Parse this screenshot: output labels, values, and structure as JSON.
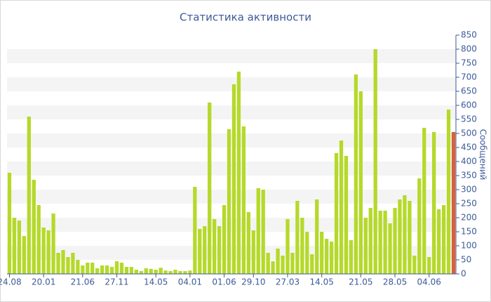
{
  "chart_data": {
    "type": "bar",
    "title": "Статистика активности",
    "y_axis_label": "Сообщений",
    "categories": [
      "24.08",
      null,
      null,
      null,
      null,
      null,
      null,
      "20.01",
      null,
      null,
      null,
      null,
      null,
      null,
      null,
      "21.06",
      null,
      null,
      null,
      null,
      null,
      null,
      "27.11",
      null,
      null,
      null,
      null,
      null,
      null,
      null,
      "14.05",
      null,
      null,
      null,
      null,
      null,
      null,
      "04.01",
      null,
      null,
      null,
      null,
      null,
      null,
      "01.06",
      null,
      null,
      null,
      null,
      null,
      "29.10",
      null,
      null,
      null,
      null,
      null,
      null,
      "27.03",
      null,
      null,
      null,
      null,
      null,
      null,
      "14.05",
      null,
      null,
      null,
      null,
      null,
      null,
      null,
      "21.05",
      null,
      null,
      null,
      null,
      null,
      null,
      "28.05",
      null,
      null,
      null,
      null,
      null,
      null,
      "04.06",
      null,
      null,
      null,
      null,
      null
    ],
    "values": [
      360,
      200,
      190,
      135,
      560,
      335,
      245,
      165,
      155,
      215,
      75,
      85,
      60,
      75,
      50,
      30,
      40,
      40,
      20,
      30,
      30,
      25,
      45,
      40,
      25,
      25,
      15,
      10,
      20,
      18,
      15,
      22,
      12,
      10,
      15,
      10,
      10,
      12,
      310,
      160,
      170,
      610,
      195,
      170,
      245,
      515,
      675,
      720,
      525,
      220,
      155,
      305,
      300,
      75,
      45,
      90,
      65,
      195,
      75,
      260,
      200,
      150,
      70,
      265,
      150,
      125,
      115,
      430,
      475,
      420,
      120,
      710,
      650,
      200,
      235,
      800,
      225,
      225,
      180,
      235,
      265,
      280,
      260,
      65,
      340,
      520,
      60,
      505,
      230,
      245,
      585,
      505
    ],
    "color": "#b5d92a",
    "last_color": "#d9603b",
    "ylim": [
      0,
      850
    ],
    "yticks": [
      0,
      50,
      100,
      150,
      200,
      250,
      300,
      350,
      400,
      450,
      500,
      550,
      600,
      650,
      700,
      750,
      800,
      850
    ],
    "grid": true
  }
}
